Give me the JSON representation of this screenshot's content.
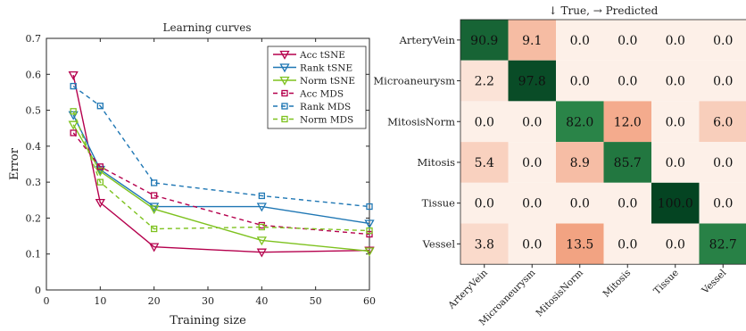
{
  "chart_data": [
    {
      "type": "line",
      "title": "Learning curves",
      "xlabel": "Training size",
      "ylabel": "Error",
      "xlim": [
        0,
        60
      ],
      "ylim": [
        0,
        0.7
      ],
      "x_ticks": [
        "0",
        "10",
        "20",
        "30",
        "40",
        "50",
        "60"
      ],
      "y_ticks": [
        "0",
        "0.1",
        "0.2",
        "0.3",
        "0.4",
        "0.5",
        "0.6",
        "0.7"
      ],
      "legend_position": "top-right",
      "x": [
        5,
        10,
        20,
        40,
        60
      ],
      "series": [
        {
          "name": "Acc tSNE",
          "values": [
            0.598,
            0.243,
            0.12,
            0.105,
            0.11
          ],
          "color": "#b5004d",
          "dash": false,
          "marker": "triangle-down"
        },
        {
          "name": "Rank tSNE",
          "values": [
            0.487,
            0.335,
            0.232,
            0.232,
            0.185
          ],
          "color": "#1f77b4",
          "dash": false,
          "marker": "triangle-down"
        },
        {
          "name": "Norm tSNE",
          "values": [
            0.46,
            0.33,
            0.225,
            0.138,
            0.108
          ],
          "color": "#7ec21f",
          "dash": false,
          "marker": "triangle-down"
        },
        {
          "name": "Acc MDS",
          "values": [
            0.437,
            0.343,
            0.263,
            0.18,
            0.155
          ],
          "color": "#b5004d",
          "dash": true,
          "marker": "square"
        },
        {
          "name": "Rank MDS",
          "values": [
            0.567,
            0.512,
            0.298,
            0.262,
            0.232
          ],
          "color": "#1f77b4",
          "dash": true,
          "marker": "square"
        },
        {
          "name": "Norm MDS",
          "values": [
            0.497,
            0.3,
            0.17,
            0.175,
            0.165
          ],
          "color": "#7ec21f",
          "dash": true,
          "marker": "square"
        }
      ],
      "grid": false
    },
    {
      "type": "heatmap",
      "title": "↓ True, → Predicted",
      "rows": [
        "ArteryVein",
        "Microaneurysm",
        "MitosisNorm",
        "Mitosis",
        "Tissue",
        "Vessel"
      ],
      "columns": [
        "ArteryVein",
        "Microaneurysm",
        "MitosisNorm",
        "Mitosis",
        "Tissue",
        "Vessel"
      ],
      "values": [
        [
          90.9,
          9.1,
          0.0,
          0.0,
          0.0,
          0.0
        ],
        [
          2.2,
          97.8,
          0.0,
          0.0,
          0.0,
          0.0
        ],
        [
          0.0,
          0.0,
          82.0,
          12.0,
          0.0,
          6.0
        ],
        [
          5.4,
          0.0,
          8.9,
          85.7,
          0.0,
          0.0
        ],
        [
          0.0,
          0.0,
          0.0,
          0.0,
          100.0,
          0.0
        ],
        [
          3.8,
          0.0,
          13.5,
          0.0,
          0.0,
          82.7
        ]
      ],
      "labels": [
        [
          "90.9",
          "9.1",
          "0.0",
          "0.0",
          "0.0",
          "0.0"
        ],
        [
          "2.2",
          "97.8",
          "0.0",
          "0.0",
          "0.0",
          "0.0"
        ],
        [
          "0.0",
          "0.0",
          "82.0",
          "12.0",
          "0.0",
          "6.0"
        ],
        [
          "5.4",
          "0.0",
          "8.9",
          "85.7",
          "0.0",
          "0.0"
        ],
        [
          "0.0",
          "0.0",
          "0.0",
          "0.0",
          "100.0",
          "0.0"
        ],
        [
          "3.8",
          "0.0",
          "13.5",
          "0.0",
          "0.0",
          "82.7"
        ]
      ],
      "diagonal_color": "#2e8b4c",
      "offdiagonal_color": "#f2a07e"
    }
  ]
}
